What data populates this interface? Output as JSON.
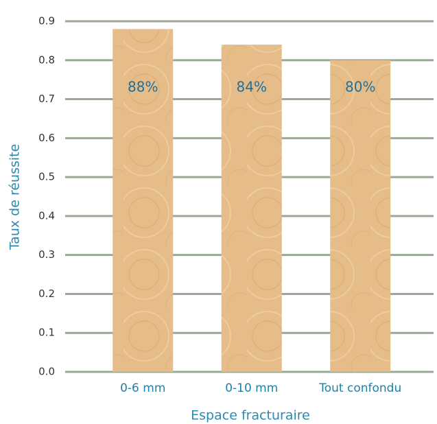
{
  "chart_data": {
    "type": "bar",
    "categories": [
      "0-6 mm",
      "0-10 mm",
      "Tout confondu"
    ],
    "values": [
      0.88,
      0.84,
      0.8
    ],
    "value_labels": [
      "88%",
      "84%",
      "80%"
    ],
    "color": "#e6bd89",
    "x_label": "Espace fracturaire",
    "y_label": "Taux  de réussite",
    "ylim": [
      0,
      0.9
    ],
    "yticks": [
      {
        "value": 0,
        "label": "0.0"
      },
      0.1,
      0.2,
      0.3,
      0.4,
      0.5,
      0.6,
      0.7,
      0.8,
      0.9
    ],
    "grid": true
  }
}
